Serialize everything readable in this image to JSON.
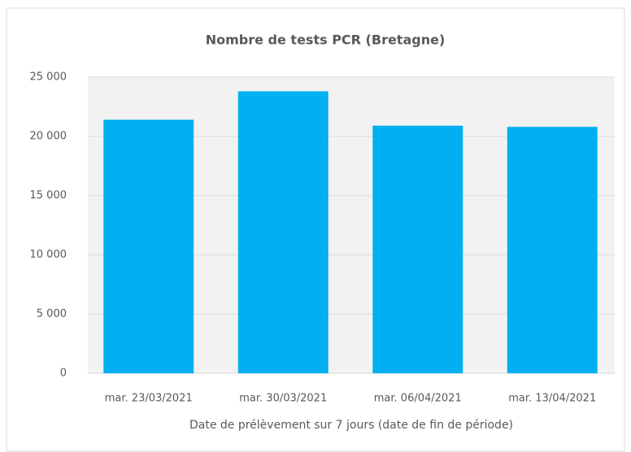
{
  "chart_data": {
    "type": "bar",
    "title": "Nombre de tests PCR (Bretagne)",
    "categories": [
      "mar. 23/03/2021",
      "mar. 30/03/2021",
      "mar. 06/04/2021",
      "mar. 13/04/2021"
    ],
    "values": [
      21400,
      23800,
      20900,
      20800
    ],
    "color": "#00b0f0",
    "x_label": "Date de prélèvement sur 7 jours (date de fin de période)",
    "ylim": [
      0,
      25000
    ],
    "yticks": [
      0,
      {
        "value": 5000,
        "label": "5 000"
      },
      {
        "value": 10000,
        "label": "10 000"
      },
      {
        "value": 15000,
        "label": "15 000"
      },
      {
        "value": 20000,
        "label": "20 000"
      },
      {
        "value": 25000,
        "label": "25 000"
      }
    ],
    "grid": true
  }
}
